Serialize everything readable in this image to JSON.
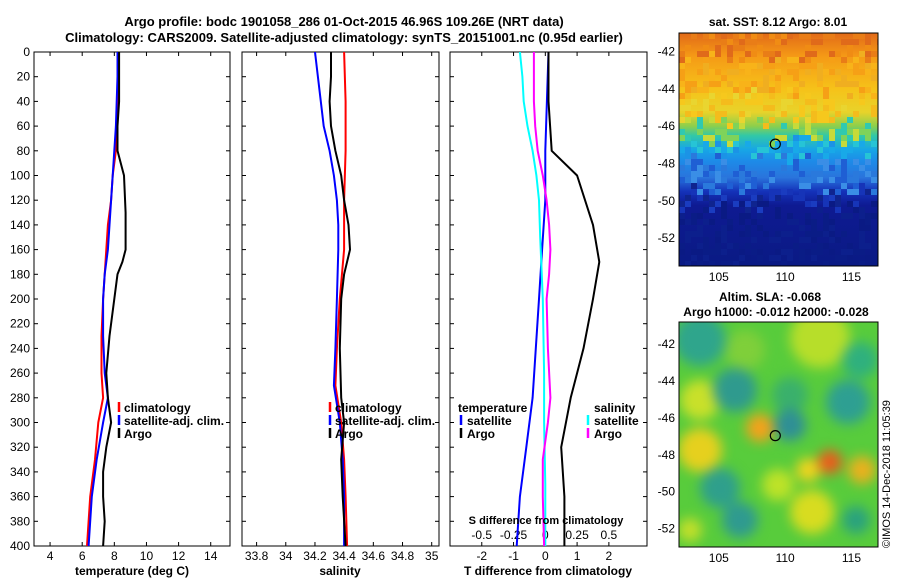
{
  "header": {
    "line1": "Argo profile: bodc 1901058_286 01-Oct-2015 46.96S 109.26E (NRT data)",
    "line2": "Climatology: CARS2009. Satellite-adjusted climatology: synTS_20151001.nc (0.95d earlier)"
  },
  "colors": {
    "red": "#ff0000",
    "blue": "#0000ff",
    "black": "#000000",
    "cyan": "#00ffff",
    "magenta": "#ff00ff"
  },
  "chart_data": [
    {
      "id": "temperature",
      "type": "line",
      "xlabel": "temperature (deg C)",
      "ylabel": "",
      "xlim": [
        3,
        15.2
      ],
      "ylim": [
        400,
        0
      ],
      "xticks": [
        4,
        6,
        8,
        10,
        12,
        14
      ],
      "yticks": [
        0,
        20,
        40,
        60,
        80,
        100,
        120,
        140,
        160,
        180,
        200,
        220,
        240,
        260,
        280,
        300,
        320,
        340,
        360,
        380,
        400
      ],
      "legend": {
        "items": [
          "climatology",
          "satellite-adj. clim.",
          "Argo"
        ],
        "colors": [
          "#ff0000",
          "#0000ff",
          "#000000"
        ]
      },
      "series": [
        {
          "name": "climatology",
          "color": "#ff0000",
          "points": [
            [
              8.2,
              0
            ],
            [
              8.2,
              20
            ],
            [
              8.2,
              60
            ],
            [
              8.1,
              80
            ],
            [
              7.9,
              100
            ],
            [
              7.8,
              120
            ],
            [
              7.6,
              140
            ],
            [
              7.5,
              160
            ],
            [
              7.4,
              180
            ],
            [
              7.3,
              200
            ],
            [
              7.2,
              230
            ],
            [
              7.2,
              260
            ],
            [
              7.3,
              280
            ],
            [
              7.0,
              300
            ],
            [
              6.8,
              330
            ],
            [
              6.5,
              360
            ],
            [
              6.3,
              400
            ]
          ]
        },
        {
          "name": "satellite-adj. clim.",
          "color": "#0000ff",
          "points": [
            [
              8.2,
              0
            ],
            [
              8.2,
              20
            ],
            [
              8.1,
              60
            ],
            [
              8.0,
              80
            ],
            [
              7.9,
              100
            ],
            [
              7.8,
              120
            ],
            [
              7.7,
              140
            ],
            [
              7.6,
              160
            ],
            [
              7.4,
              180
            ],
            [
              7.3,
              200
            ],
            [
              7.3,
              230
            ],
            [
              7.4,
              260
            ],
            [
              7.6,
              280
            ],
            [
              7.3,
              300
            ],
            [
              6.9,
              330
            ],
            [
              6.6,
              360
            ],
            [
              6.4,
              400
            ]
          ]
        },
        {
          "name": "Argo",
          "color": "#000000",
          "points": [
            [
              8.3,
              0
            ],
            [
              8.3,
              40
            ],
            [
              8.2,
              60
            ],
            [
              8.2,
              80
            ],
            [
              8.6,
              100
            ],
            [
              8.7,
              130
            ],
            [
              8.7,
              160
            ],
            [
              8.5,
              170
            ],
            [
              8.2,
              180
            ],
            [
              8.0,
              200
            ],
            [
              7.7,
              230
            ],
            [
              7.5,
              260
            ],
            [
              7.6,
              280
            ],
            [
              7.8,
              300
            ],
            [
              7.5,
              320
            ],
            [
              7.3,
              340
            ],
            [
              7.3,
              360
            ],
            [
              7.4,
              380
            ],
            [
              7.3,
              400
            ]
          ]
        }
      ]
    },
    {
      "id": "salinity",
      "type": "line",
      "xlabel": "salinity",
      "xlim": [
        33.7,
        35.05
      ],
      "ylim": [
        400,
        0
      ],
      "xticks": [
        33.8,
        34,
        34.2,
        34.4,
        34.6,
        34.8,
        35
      ],
      "xticklabels": [
        "33.8",
        "34",
        "34.2",
        "34.4",
        "34.6",
        "34.8",
        "35"
      ],
      "legend": {
        "items": [
          "climatology",
          "satellite-adj. clim.",
          "Argo"
        ],
        "colors": [
          "#ff0000",
          "#0000ff",
          "#000000"
        ]
      },
      "series": [
        {
          "name": "climatology",
          "color": "#ff0000",
          "points": [
            [
              34.4,
              0
            ],
            [
              34.41,
              40
            ],
            [
              34.41,
              80
            ],
            [
              34.4,
              120
            ],
            [
              34.4,
              160
            ],
            [
              34.37,
              200
            ],
            [
              34.35,
              240
            ],
            [
              34.34,
              270
            ],
            [
              34.38,
              300
            ],
            [
              34.4,
              330
            ],
            [
              34.41,
              360
            ],
            [
              34.42,
              400
            ]
          ]
        },
        {
          "name": "satellite-adj. clim.",
          "color": "#0000ff",
          "points": [
            [
              34.2,
              0
            ],
            [
              34.22,
              20
            ],
            [
              34.24,
              40
            ],
            [
              34.26,
              60
            ],
            [
              34.3,
              80
            ],
            [
              34.33,
              100
            ],
            [
              34.35,
              120
            ],
            [
              34.36,
              140
            ],
            [
              34.36,
              160
            ],
            [
              34.35,
              200
            ],
            [
              34.34,
              240
            ],
            [
              34.33,
              270
            ],
            [
              34.37,
              300
            ],
            [
              34.39,
              330
            ],
            [
              34.4,
              360
            ],
            [
              34.4,
              400
            ]
          ]
        },
        {
          "name": "Argo",
          "color": "#000000",
          "points": [
            [
              34.31,
              0
            ],
            [
              34.31,
              20
            ],
            [
              34.3,
              40
            ],
            [
              34.31,
              60
            ],
            [
              34.34,
              80
            ],
            [
              34.38,
              100
            ],
            [
              34.4,
              120
            ],
            [
              34.43,
              140
            ],
            [
              34.44,
              160
            ],
            [
              34.4,
              180
            ],
            [
              34.38,
              200
            ],
            [
              34.37,
              240
            ],
            [
              34.38,
              280
            ],
            [
              34.4,
              300
            ],
            [
              34.38,
              330
            ],
            [
              34.39,
              360
            ],
            [
              34.41,
              400
            ]
          ]
        }
      ]
    },
    {
      "id": "differences",
      "type": "line",
      "xlabel": "T difference from climatology",
      "xlim": [
        -3,
        3.2
      ],
      "ylim": [
        400,
        0
      ],
      "xticks": [
        -2,
        -1,
        0,
        1,
        2
      ],
      "xticklabels": [
        "-2",
        "-1",
        "0",
        "1",
        "2"
      ],
      "secondary_xlabel": "S difference from climatology",
      "secondary_xticks": [
        -0.5,
        -0.25,
        0,
        0.25,
        0.5
      ],
      "secondary_xticklabels": [
        "-0.5",
        "-0.25",
        "0",
        "0.25",
        "0.5"
      ],
      "secondary_xlim": [
        -0.75,
        0.8
      ],
      "legend": {
        "temperature_title": "temperature",
        "salinity_title": "salinity",
        "temperature_items": [
          "satellite",
          "Argo"
        ],
        "temperature_colors": [
          "#0000ff",
          "#000000"
        ],
        "salinity_items": [
          "satellite",
          "Argo"
        ],
        "salinity_colors": [
          "#00ffff",
          "#ff00ff"
        ]
      },
      "series": [
        {
          "name": "T satellite",
          "color": "#0000ff",
          "axis": "T",
          "points": [
            [
              0.1,
              0
            ],
            [
              0.05,
              40
            ],
            [
              0.0,
              80
            ],
            [
              0.0,
              120
            ],
            [
              -0.1,
              160
            ],
            [
              -0.2,
              200
            ],
            [
              -0.3,
              240
            ],
            [
              -0.4,
              280
            ],
            [
              -0.6,
              320
            ],
            [
              -0.8,
              360
            ],
            [
              -0.9,
              400
            ]
          ]
        },
        {
          "name": "T Argo",
          "color": "#000000",
          "axis": "T",
          "points": [
            [
              0.1,
              0
            ],
            [
              0.1,
              40
            ],
            [
              0.2,
              80
            ],
            [
              1.0,
              100
            ],
            [
              1.5,
              140
            ],
            [
              1.7,
              170
            ],
            [
              1.5,
              200
            ],
            [
              1.2,
              240
            ],
            [
              0.8,
              280
            ],
            [
              0.5,
              320
            ],
            [
              0.6,
              360
            ],
            [
              0.6,
              400
            ]
          ]
        },
        {
          "name": "S satellite",
          "color": "#00ffff",
          "axis": "S",
          "points": [
            [
              -0.2,
              0
            ],
            [
              -0.18,
              20
            ],
            [
              -0.17,
              40
            ],
            [
              -0.14,
              60
            ],
            [
              -0.1,
              80
            ],
            [
              -0.07,
              100
            ],
            [
              -0.05,
              120
            ],
            [
              -0.04,
              150
            ],
            [
              -0.02,
              200
            ],
            [
              -0.01,
              260
            ],
            [
              -0.01,
              300
            ],
            [
              0.0,
              350
            ],
            [
              0.0,
              400
            ]
          ]
        },
        {
          "name": "S Argo",
          "color": "#ff00ff",
          "axis": "S",
          "points": [
            [
              -0.09,
              0
            ],
            [
              -0.09,
              40
            ],
            [
              -0.08,
              60
            ],
            [
              -0.06,
              80
            ],
            [
              -0.02,
              100
            ],
            [
              0.01,
              120
            ],
            [
              0.03,
              140
            ],
            [
              0.04,
              160
            ],
            [
              0.03,
              180
            ],
            [
              0.01,
              200
            ],
            [
              0.02,
              240
            ],
            [
              0.04,
              280
            ],
            [
              0.02,
              300
            ],
            [
              -0.02,
              330
            ],
            [
              -0.02,
              360
            ],
            [
              -0.01,
              400
            ]
          ]
        }
      ]
    },
    {
      "id": "sst-map",
      "type": "heatmap",
      "title": "sat. SST: 8.12 Argo: 8.01",
      "xlim": [
        102,
        117
      ],
      "ylim": [
        -53.5,
        -41
      ],
      "xticks": [
        105,
        110,
        115
      ],
      "xticklabels": [
        "105",
        "110",
        "115"
      ],
      "yticks": [
        -42,
        -44,
        -46,
        -48,
        -50,
        -52
      ],
      "yticklabels": [
        "-42",
        "-44",
        "-46",
        "-48",
        "-50",
        "-52"
      ],
      "marker": {
        "lon": 109.26,
        "lat": -46.96
      }
    },
    {
      "id": "sla-map",
      "type": "heatmap",
      "title": "Altim. SLA: -0.068",
      "subtitle": "Argo h1000: -0.012 h2000: -0.028",
      "xlim": [
        102,
        117
      ],
      "ylim": [
        -53,
        -40.8
      ],
      "xticks": [
        105,
        110,
        115
      ],
      "xticklabels": [
        "105",
        "110",
        "115"
      ],
      "yticks": [
        -42,
        -44,
        -46,
        -48,
        -50,
        -52
      ],
      "yticklabels": [
        "-42",
        "-44",
        "-46",
        "-48",
        "-50",
        "-52"
      ],
      "marker": {
        "lon": 109.26,
        "lat": -46.96
      }
    }
  ],
  "footer": {
    "watermark": "©IMOS 14-Dec-2018 11:05:39"
  }
}
